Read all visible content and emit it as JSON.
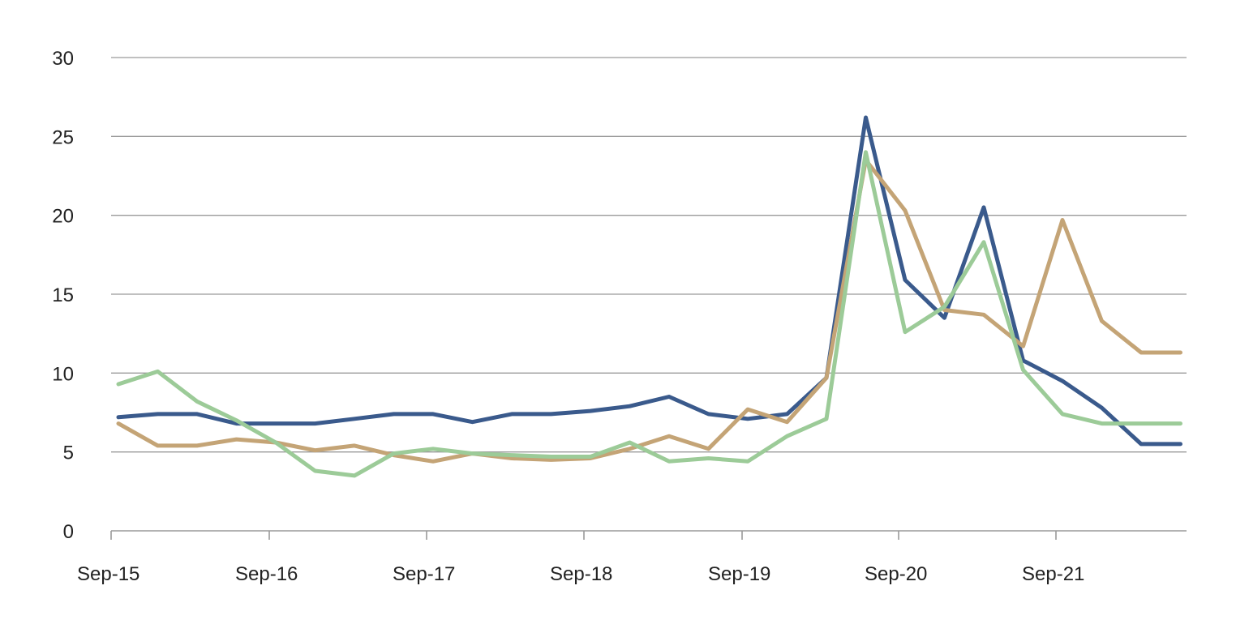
{
  "chart_data": {
    "type": "line",
    "title": "",
    "xlabel": "",
    "ylabel": "",
    "ylim": [
      0,
      30
    ],
    "yticks": [
      0,
      5,
      10,
      15,
      20,
      25,
      30
    ],
    "grid": true,
    "legend": "none",
    "x_tick_labels": [
      "Sep-15",
      "Sep-16",
      "Sep-17",
      "Sep-18",
      "Sep-19",
      "Sep-20",
      "Sep-21"
    ],
    "x_tick_period_indices": [
      0,
      4,
      8,
      12,
      16,
      20,
      24
    ],
    "x": [
      "Sep-15",
      "Dec-15",
      "Mar-16",
      "Jun-16",
      "Sep-16",
      "Dec-16",
      "Mar-17",
      "Jun-17",
      "Sep-17",
      "Dec-17",
      "Mar-18",
      "Jun-18",
      "Sep-18",
      "Dec-18",
      "Mar-19",
      "Jun-19",
      "Sep-19",
      "Dec-19",
      "Mar-20",
      "Jun-20",
      "Sep-20",
      "Dec-20",
      "Mar-21",
      "Jun-21",
      "Sep-21",
      "Dec-21",
      "Mar-22",
      "Jun-22"
    ],
    "series": [
      {
        "color": "#3a5a8c",
        "values": [
          7.2,
          7.4,
          7.4,
          6.8,
          6.8,
          6.8,
          7.1,
          7.4,
          7.4,
          6.9,
          7.4,
          7.4,
          7.6,
          7.9,
          8.5,
          7.4,
          7.1,
          7.4,
          9.7,
          26.2,
          15.9,
          13.5,
          20.5,
          10.8,
          9.5,
          7.8,
          5.5,
          5.5
        ]
      },
      {
        "color": "#c4a476",
        "values": [
          6.8,
          5.4,
          5.4,
          5.8,
          5.6,
          5.1,
          5.4,
          4.8,
          4.4,
          4.9,
          4.6,
          4.5,
          4.6,
          5.2,
          6.0,
          5.2,
          7.7,
          6.9,
          9.7,
          23.5,
          20.3,
          14.0,
          13.7,
          11.7,
          19.7,
          13.3,
          11.3,
          11.3
        ]
      },
      {
        "color": "#9ccb98",
        "values": [
          9.3,
          10.1,
          8.2,
          7.0,
          5.6,
          3.8,
          3.5,
          4.9,
          5.2,
          4.9,
          4.8,
          4.7,
          4.7,
          5.6,
          4.4,
          4.6,
          4.4,
          6.0,
          7.1,
          24.0,
          12.6,
          14.2,
          18.3,
          10.2,
          7.4,
          6.8,
          6.8,
          6.8
        ]
      }
    ]
  }
}
